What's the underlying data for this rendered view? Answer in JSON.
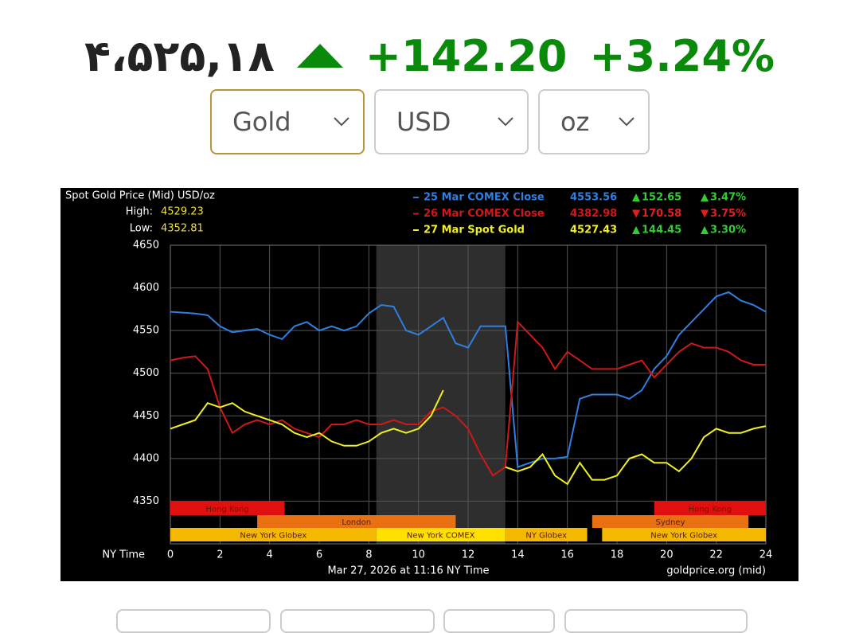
{
  "header": {
    "price": "۴،۵۲۵,۱۸",
    "change": "+142.20",
    "change_pct": "+3.24%"
  },
  "selects": [
    "Gold",
    "USD",
    "oz"
  ],
  "chart_data": {
    "type": "line",
    "title": "Spot Gold Price (Mid) USD/oz",
    "high_label": "High:",
    "high": 4529.23,
    "low_label": "Low:",
    "low": 4352.81,
    "x_label": "NY Time",
    "footer": "Mar 27, 2026 at 11:16 NY Time",
    "source": "goldprice.org (mid)",
    "xlim": [
      0,
      24
    ],
    "xticks": [
      0,
      2,
      4,
      6,
      8,
      10,
      12,
      14,
      16,
      18,
      20,
      22,
      24
    ],
    "ylim": [
      4300,
      4650
    ],
    "yticks": [
      4350,
      4400,
      4450,
      4500,
      4550,
      4600,
      4650
    ],
    "grid": true,
    "highlight": {
      "start": 8.3,
      "end": 13.5
    },
    "x": [
      0,
      0.5,
      1,
      1.5,
      2,
      2.5,
      3,
      3.5,
      4,
      4.5,
      5,
      5.5,
      6,
      6.5,
      7,
      7.5,
      8,
      8.5,
      9,
      9.5,
      10,
      10.5,
      11,
      11.5,
      12,
      12.5,
      13,
      13.5,
      14,
      14.5,
      15,
      15.5,
      16,
      16.5,
      17,
      17.5,
      18,
      18.5,
      19,
      19.5,
      20,
      20.5,
      21,
      21.5,
      22,
      22.5,
      23,
      23.5,
      24
    ],
    "series": [
      {
        "name": "25 Mar COMEX Close",
        "color": "#2f7fe0",
        "close": 4553.56,
        "change": {
          "value": 152.65,
          "label": "152.65"
        },
        "change_pct": {
          "value": 3.47,
          "label": "3.47%"
        },
        "values": [
          4572,
          4571,
          4570,
          4568,
          4555,
          4548,
          4550,
          4552,
          4545,
          4540,
          4555,
          4560,
          4550,
          4555,
          4550,
          4555,
          4570,
          4580,
          4578,
          4550,
          4545,
          4555,
          4565,
          4535,
          4530,
          4555,
          4555,
          4555,
          4390,
          4395,
          4400,
          4400,
          4402,
          4470,
          4475,
          4475,
          4475,
          4470,
          4480,
          4505,
          4520,
          4545,
          4560,
          4575,
          4590,
          4595,
          4585,
          4580,
          4572
        ]
      },
      {
        "name": "26 Mar COMEX Close",
        "color": "#d01818",
        "close": 4382.98,
        "change": {
          "value": -170.58,
          "label": "170.58"
        },
        "change_pct": {
          "value": -3.75,
          "label": "3.75%"
        },
        "values": [
          4515,
          4518,
          4520,
          4505,
          4460,
          4430,
          4440,
          4445,
          4440,
          4445,
          4435,
          4430,
          4425,
          4440,
          4440,
          4445,
          4440,
          4440,
          4445,
          4440,
          4440,
          4455,
          4460,
          4450,
          4435,
          4405,
          4380,
          4390,
          4560,
          4545,
          4530,
          4505,
          4525,
          4515,
          4505,
          4505,
          4505,
          4510,
          4515,
          4495,
          4510,
          4525,
          4535,
          4530,
          4530,
          4525,
          4515,
          4510,
          4510
        ]
      },
      {
        "name": "27 Mar Spot Gold",
        "color": "#f0f020",
        "close": 4527.43,
        "change": {
          "value": 144.45,
          "label": "144.45"
        },
        "change_pct": {
          "value": 3.3,
          "label": "3.30%"
        },
        "values": [
          4435,
          4440,
          4445,
          4465,
          4460,
          4465,
          4455,
          4450,
          4445,
          4440,
          4430,
          4425,
          4430,
          4420,
          4415,
          4415,
          4420,
          4430,
          4435,
          4430,
          4435,
          4450,
          4480,
          null,
          null,
          null,
          null,
          4390,
          4385,
          4390,
          4405,
          4380,
          4370,
          4395,
          4375,
          4375,
          4380,
          4400,
          4405,
          4395,
          4395,
          4385,
          4400,
          4425,
          4435,
          4430,
          4430,
          4435,
          4438
        ]
      }
    ],
    "session_rows": [
      [
        {
          "label": "Hong Kong",
          "start": 0,
          "end": 4.6,
          "color": "#e01010"
        },
        {
          "label": "Hong Kong",
          "start": 19.5,
          "end": 24,
          "color": "#e01010"
        }
      ],
      [
        {
          "label": "London",
          "start": 3.5,
          "end": 11.5,
          "color": "#e87010"
        },
        {
          "label": "Sydney",
          "start": 17,
          "end": 23.3,
          "color": "#e87010"
        }
      ],
      [
        {
          "label": "New York Globex",
          "start": 0,
          "end": 8.3,
          "color": "#f5b800"
        },
        {
          "label": "New York COMEX",
          "start": 8.3,
          "end": 13.5,
          "color": "#ffe000"
        },
        {
          "label": "NY Globex",
          "start": 13.5,
          "end": 16.8,
          "color": "#f5b800"
        },
        {
          "label": "New York Globex",
          "start": 17.4,
          "end": 24,
          "color": "#f5b800"
        }
      ]
    ]
  }
}
